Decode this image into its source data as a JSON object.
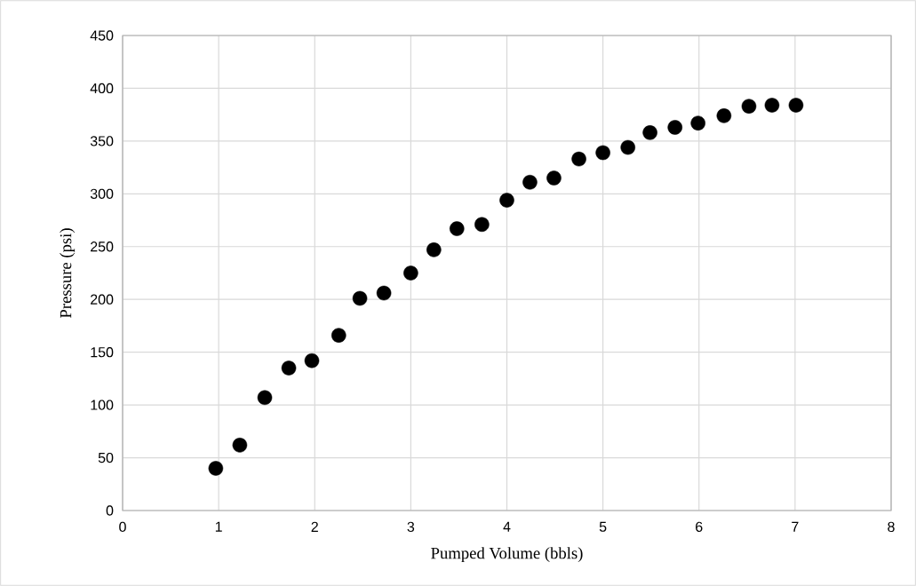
{
  "chart_data": {
    "type": "scatter",
    "xlabel": "Pumped Volume (bbls)",
    "ylabel": "Pressure (psi)",
    "x": [
      0.97,
      1.22,
      1.48,
      1.73,
      1.97,
      2.25,
      2.47,
      2.72,
      3.0,
      3.24,
      3.48,
      3.74,
      4.0,
      4.24,
      4.49,
      4.75,
      5.0,
      5.26,
      5.49,
      5.75,
      5.99,
      6.26,
      6.52,
      6.76,
      7.01
    ],
    "series": [
      {
        "color": "#000000",
        "values": [
          40,
          62,
          107,
          135,
          142,
          166,
          201,
          206,
          225,
          247,
          267,
          271,
          294,
          311,
          315,
          333,
          339,
          344,
          358,
          363,
          367,
          374,
          383,
          384,
          384
        ]
      }
    ],
    "xlim": [
      0,
      8
    ],
    "ylim": [
      0,
      450
    ],
    "xticks": [
      0,
      1,
      2,
      3,
      4,
      5,
      6,
      7,
      8
    ],
    "yticks": [
      0,
      50,
      100,
      150,
      200,
      250,
      300,
      350,
      400,
      450
    ],
    "grid": true,
    "marker": "circle"
  }
}
